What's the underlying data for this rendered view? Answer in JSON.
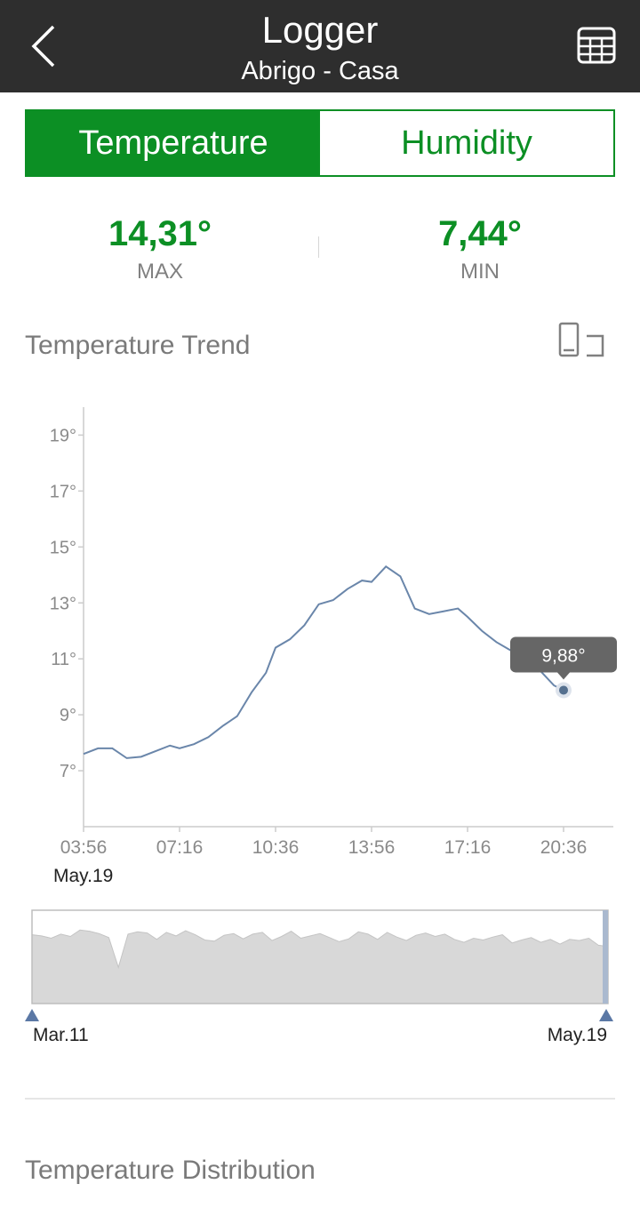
{
  "header": {
    "title": "Logger",
    "subtitle": "Abrigo - Casa",
    "back_icon": "chevron-left-icon",
    "table_icon": "table-grid-icon"
  },
  "tabs": [
    {
      "label": "Temperature",
      "active": true
    },
    {
      "label": "Humidity",
      "active": false
    }
  ],
  "stats": {
    "max_value": "14,31°",
    "max_label": "MAX",
    "min_value": "7,44°",
    "min_label": "MIN"
  },
  "trend": {
    "title": "Temperature Trend",
    "rotate_icon": "rotate-screen-icon"
  },
  "distribution": {
    "title": "Temperature Distribution"
  },
  "colors": {
    "accent": "#0c8f24",
    "header": "#2e2e2e",
    "line": "#6a86aa",
    "tooltip": "#666666",
    "navigator_fill": "#d8d8d8"
  },
  "chart_data": {
    "type": "line",
    "title": "",
    "y_tick_labels": [
      "7°",
      "9°",
      "11°",
      "13°",
      "15°",
      "17°",
      "19°"
    ],
    "x_tick_labels": [
      "03:56",
      "07:16",
      "10:36",
      "13:56",
      "17:16",
      "20:36"
    ],
    "date_label": "May.19",
    "ylim": [
      5,
      20
    ],
    "series": [
      {
        "x": [
          "03:56",
          "04:26",
          "04:56",
          "05:26",
          "05:56",
          "06:26",
          "06:56",
          "07:16",
          "07:46",
          "08:16",
          "08:46",
          "09:16",
          "09:46",
          "10:16",
          "10:36",
          "11:06",
          "11:36",
          "12:06",
          "12:36",
          "13:06",
          "13:36",
          "13:56",
          "14:26",
          "14:56",
          "15:26",
          "15:56",
          "16:26",
          "16:56",
          "17:16",
          "17:46",
          "18:16",
          "18:46",
          "19:16",
          "19:46",
          "20:16",
          "20:36"
        ],
        "y": [
          7.6,
          7.8,
          7.8,
          7.45,
          7.5,
          7.7,
          7.9,
          7.8,
          7.95,
          8.2,
          8.6,
          8.95,
          9.8,
          10.5,
          11.4,
          11.7,
          12.2,
          12.95,
          13.1,
          13.5,
          13.8,
          13.75,
          14.3,
          13.95,
          12.8,
          12.6,
          12.7,
          12.8,
          12.5,
          12.0,
          11.6,
          11.3,
          11.0,
          10.6,
          10.05,
          9.88
        ]
      }
    ],
    "tooltip": {
      "x": "20:36",
      "label": "9,88°"
    },
    "navigator": {
      "start_label": "Mar.11",
      "end_label": "May.19",
      "values": [
        11.8,
        11.6,
        11.2,
        11.9,
        11.5,
        12.6,
        12.4,
        12.0,
        11.3,
        6.2,
        11.9,
        12.3,
        12.1,
        11.0,
        12.2,
        11.6,
        12.5,
        11.8,
        10.9,
        10.7,
        11.7,
        12.0,
        11.1,
        11.9,
        12.2,
        10.8,
        11.5,
        12.4,
        11.2,
        11.6,
        12.0,
        11.3,
        10.6,
        11.1,
        12.3,
        11.9,
        11.0,
        12.2,
        11.4,
        10.8,
        11.7,
        12.1,
        11.5,
        11.9,
        11.0,
        10.5,
        11.2,
        10.9,
        11.4,
        11.8,
        10.4,
        10.9,
        11.3,
        10.5,
        11.0,
        10.2,
        11.0,
        10.8,
        11.2,
        10.0,
        9.8
      ]
    }
  }
}
